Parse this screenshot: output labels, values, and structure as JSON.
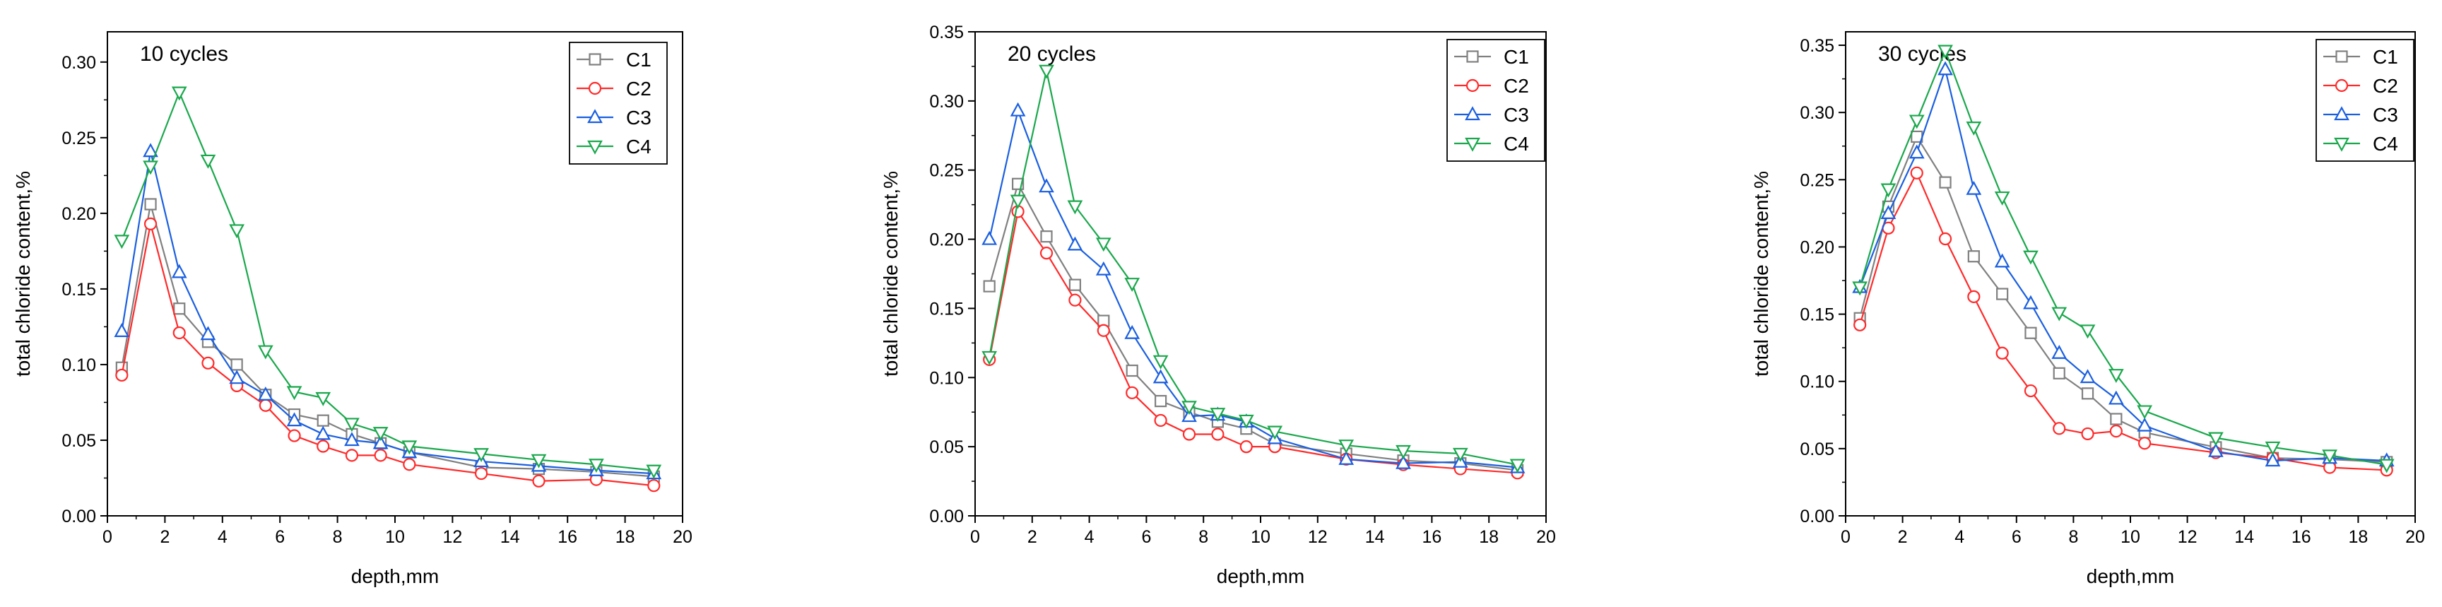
{
  "colors": {
    "C1": "#808080",
    "C2": "#ff2a2a",
    "C3": "#1a5fe0",
    "C4": "#1aa84c",
    "axis": "#000000"
  },
  "markers": {
    "C1": "square",
    "C2": "circle",
    "C3": "triangle-up",
    "C4": "triangle-down"
  },
  "chart_data": [
    {
      "type": "line",
      "title": "10 cycles",
      "xlabel": "depth,mm",
      "ylabel": "total chloride content,%",
      "xlim": [
        0,
        20
      ],
      "ylim": [
        0,
        0.32
      ],
      "xticks": [
        0,
        2,
        4,
        6,
        8,
        10,
        12,
        14,
        16,
        18,
        20
      ],
      "xtick_labels": [
        "0",
        "2",
        "4",
        "6",
        "8",
        "10",
        "12",
        "14",
        "16",
        "18",
        "20"
      ],
      "yticks": [
        0,
        0.05,
        0.1,
        0.15,
        0.2,
        0.25,
        0.3
      ],
      "ytick_labels": [
        "0.00",
        "0.05",
        "0.10",
        "0.15",
        "0.20",
        "0.25",
        "0.30"
      ],
      "legend_position": "top-right",
      "x": [
        0.5,
        1.5,
        2.5,
        3.5,
        4.5,
        5.5,
        6.5,
        7.5,
        8.5,
        9.5,
        10.5,
        13,
        15,
        17,
        19
      ],
      "series": [
        {
          "name": "C1",
          "values": [
            0.098,
            0.206,
            0.137,
            0.115,
            0.1,
            0.08,
            0.067,
            0.063,
            0.054,
            0.048,
            0.042,
            0.032,
            0.031,
            0.029,
            0.026
          ]
        },
        {
          "name": "C2",
          "values": [
            0.093,
            0.193,
            0.121,
            0.101,
            0.086,
            0.073,
            0.053,
            0.046,
            0.04,
            0.04,
            0.034,
            0.028,
            0.023,
            0.024,
            0.02
          ]
        },
        {
          "name": "C3",
          "values": [
            0.122,
            0.241,
            0.161,
            0.12,
            0.091,
            0.08,
            0.063,
            0.054,
            0.05,
            0.048,
            0.042,
            0.036,
            0.033,
            0.03,
            0.028
          ]
        },
        {
          "name": "C4",
          "values": [
            0.182,
            0.231,
            0.28,
            0.235,
            0.189,
            0.109,
            0.082,
            0.078,
            0.061,
            0.055,
            0.046,
            0.041,
            0.037,
            0.034,
            0.03
          ]
        }
      ]
    },
    {
      "type": "line",
      "title": "20 cycles",
      "xlabel": "depth,mm",
      "ylabel": "total chloride content,%",
      "xlim": [
        0,
        20
      ],
      "ylim": [
        0,
        0.35
      ],
      "xticks": [
        0,
        2,
        4,
        6,
        8,
        10,
        12,
        14,
        16,
        18,
        20
      ],
      "xtick_labels": [
        "0",
        "2",
        "4",
        "6",
        "8",
        "10",
        "12",
        "14",
        "16",
        "18",
        "20"
      ],
      "yticks": [
        0,
        0.05,
        0.1,
        0.15,
        0.2,
        0.25,
        0.3,
        0.35
      ],
      "ytick_labels": [
        "0.00",
        "0.05",
        "0.10",
        "0.15",
        "0.20",
        "0.25",
        "0.30",
        "0.35"
      ],
      "legend_position": "top-right",
      "x": [
        0.5,
        1.5,
        2.5,
        3.5,
        4.5,
        5.5,
        6.5,
        7.5,
        8.5,
        9.5,
        10.5,
        13,
        15,
        17,
        19
      ],
      "series": [
        {
          "name": "C1",
          "values": [
            0.166,
            0.24,
            0.202,
            0.167,
            0.141,
            0.105,
            0.083,
            0.075,
            0.068,
            0.063,
            0.052,
            0.045,
            0.04,
            0.038,
            0.033
          ]
        },
        {
          "name": "C2",
          "values": [
            0.113,
            0.22,
            0.19,
            0.156,
            0.134,
            0.089,
            0.069,
            0.059,
            0.059,
            0.05,
            0.05,
            0.041,
            0.037,
            0.034,
            0.031
          ]
        },
        {
          "name": "C3",
          "values": [
            0.2,
            0.293,
            0.238,
            0.196,
            0.178,
            0.132,
            0.1,
            0.072,
            0.073,
            0.068,
            0.056,
            0.041,
            0.038,
            0.039,
            0.035
          ]
        },
        {
          "name": "C4",
          "values": [
            0.115,
            0.228,
            0.322,
            0.224,
            0.197,
            0.168,
            0.112,
            0.079,
            0.074,
            0.069,
            0.061,
            0.051,
            0.047,
            0.045,
            0.037
          ]
        }
      ]
    },
    {
      "type": "line",
      "title": "30 cycles",
      "xlabel": "depth,mm",
      "ylabel": "total chloride content,%",
      "xlim": [
        0,
        20
      ],
      "ylim": [
        0,
        0.36
      ],
      "xticks": [
        0,
        2,
        4,
        6,
        8,
        10,
        12,
        14,
        16,
        18,
        20
      ],
      "xtick_labels": [
        "0",
        "2",
        "4",
        "6",
        "8",
        "10",
        "12",
        "14",
        "16",
        "18",
        "20"
      ],
      "yticks": [
        0,
        0.05,
        0.1,
        0.15,
        0.2,
        0.25,
        0.3,
        0.35
      ],
      "ytick_labels": [
        "0.00",
        "0.05",
        "0.10",
        "0.15",
        "0.20",
        "0.25",
        "0.30",
        "0.35"
      ],
      "legend_position": "top-right",
      "x": [
        0.5,
        1.5,
        2.5,
        3.5,
        4.5,
        5.5,
        6.5,
        7.5,
        8.5,
        9.5,
        10.5,
        13,
        15,
        17,
        19
      ],
      "series": [
        {
          "name": "C1",
          "values": [
            0.147,
            0.23,
            0.282,
            0.248,
            0.193,
            0.165,
            0.136,
            0.106,
            0.091,
            0.072,
            0.062,
            0.051,
            0.043,
            0.042,
            0.04
          ]
        },
        {
          "name": "C2",
          "values": [
            0.142,
            0.214,
            0.255,
            0.206,
            0.163,
            0.121,
            0.093,
            0.065,
            0.061,
            0.063,
            0.054,
            0.047,
            0.043,
            0.036,
            0.034
          ]
        },
        {
          "name": "C3",
          "values": [
            0.17,
            0.225,
            0.27,
            0.332,
            0.243,
            0.189,
            0.158,
            0.121,
            0.103,
            0.087,
            0.067,
            0.048,
            0.041,
            0.043,
            0.041
          ]
        },
        {
          "name": "C4",
          "values": [
            0.17,
            0.243,
            0.294,
            0.346,
            0.289,
            0.237,
            0.193,
            0.151,
            0.138,
            0.105,
            0.078,
            0.058,
            0.051,
            0.045,
            0.038
          ]
        }
      ]
    }
  ]
}
